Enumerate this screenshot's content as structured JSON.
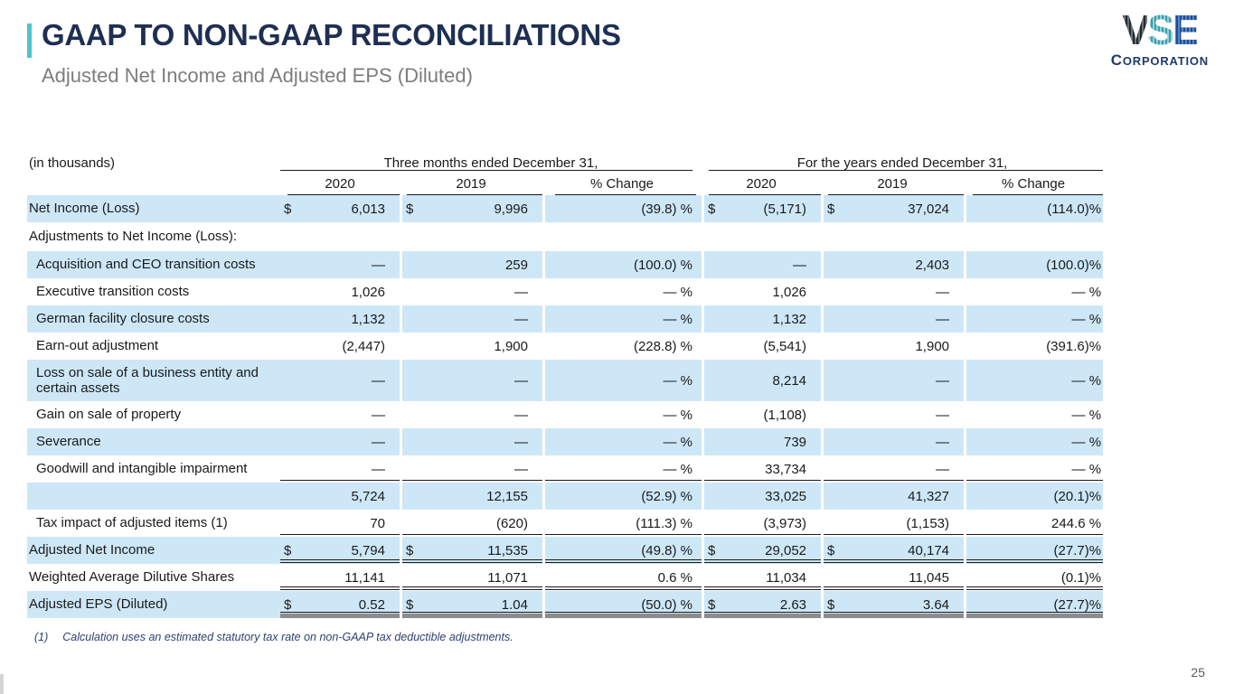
{
  "slide": {
    "title": "GAAP TO NON-GAAP RECONCILIATIONS",
    "subtitle": "Adjusted Net Income and Adjusted EPS (Diluted)",
    "page_number": "25",
    "colors": {
      "accent_teal": "#4fc3cf",
      "title_navy": "#1e2f53",
      "row_stripe_blue": "#cde7f7",
      "subtitle_gray": "#7d7d7d",
      "footnote_navy": "#2f3f6e",
      "final_rule_gray": "#8c8c8c"
    }
  },
  "logo": {
    "letter_v": "V",
    "letter_s": "S",
    "letter_e": "E",
    "sub_initial": "C",
    "sub_rest": "ORPORATION"
  },
  "table": {
    "units_label": "(in thousands)",
    "group_headers": [
      "Three months ended December 31,",
      "For the years ended December 31,"
    ],
    "col_headers": [
      "2020",
      "2019",
      "% Change",
      "2020",
      "2019",
      "% Change"
    ],
    "rows": [
      {
        "label": "Net Income (Loss)",
        "d1": "$",
        "v1": "6,013",
        "d2": "$",
        "v2": "9,996",
        "p1": "(39.8) %",
        "d3": "$",
        "v3": "(5,171)",
        "d4": "$",
        "v4": "37,024",
        "p2": "(114.0)%",
        "shade": true
      },
      {
        "label": "Adjustments to Net Income (Loss):",
        "section": true
      },
      {
        "label": "Acquisition and CEO transition costs",
        "indent": true,
        "v1": "—",
        "v2": "259",
        "p1": "(100.0) %",
        "v3": "—",
        "v4": "2,403",
        "p2": "(100.0)%",
        "shade": true
      },
      {
        "label": "Executive transition costs",
        "indent": true,
        "v1": "1,026",
        "v2": "—",
        "p1": "— %",
        "v3": "1,026",
        "v4": "—",
        "p2": "— %"
      },
      {
        "label": "German facility closure costs",
        "indent": true,
        "v1": "1,132",
        "v2": "—",
        "p1": "— %",
        "v3": "1,132",
        "v4": "—",
        "p2": "— %",
        "shade": true
      },
      {
        "label": "Earn-out adjustment",
        "indent": true,
        "v1": "(2,447)",
        "v2": "1,900",
        "p1": "(228.8) %",
        "v3": "(5,541)",
        "v4": "1,900",
        "p2": "(391.6)%"
      },
      {
        "label": "Loss on sale of a business entity and certain assets",
        "indent": true,
        "twoline": true,
        "v1": "—",
        "v2": "—",
        "p1": "— %",
        "v3": "8,214",
        "v4": "—",
        "p2": "— %",
        "shade": true
      },
      {
        "label": "Gain on sale of property",
        "indent": true,
        "v1": "—",
        "v2": "—",
        "p1": "— %",
        "v3": "(1,108)",
        "v4": "—",
        "p2": "— %"
      },
      {
        "label": "Severance",
        "indent": true,
        "v1": "—",
        "v2": "—",
        "p1": "— %",
        "v3": "739",
        "v4": "—",
        "p2": "— %",
        "shade": true
      },
      {
        "label": "Goodwill and intangible impairment",
        "indent": true,
        "v1": "—",
        "v2": "—",
        "p1": "— %",
        "v3": "33,734",
        "v4": "—",
        "p2": "— %",
        "style": "u"
      },
      {
        "label": "",
        "v1": "5,724",
        "v2": "12,155",
        "p1": "(52.9) %",
        "v3": "33,025",
        "v4": "41,327",
        "p2": "(20.1)%",
        "shade": true
      },
      {
        "label": "Tax impact of adjusted items (1)",
        "indent": true,
        "v1": "70",
        "v2": "(620)",
        "p1": "(111.3) %",
        "v3": "(3,973)",
        "v4": "(1,153)",
        "p2": "244.6 %",
        "style": "u"
      },
      {
        "label": "Adjusted Net Income",
        "d1": "$",
        "v1": "5,794",
        "d2": "$",
        "v2": "11,535",
        "p1": "(49.8) %",
        "d3": "$",
        "v3": "29,052",
        "d4": "$",
        "v4": "40,174",
        "p2": "(27.7)%",
        "shade": true,
        "style": "uu"
      },
      {
        "label": "Weighted Average Dilutive Shares",
        "v1": "11,141",
        "v2": "11,071",
        "p1": "0.6  %",
        "v3": "11,034",
        "v4": "11,045",
        "p2": "(0.1)%",
        "style": "uu"
      },
      {
        "label": "Adjusted EPS (Diluted)",
        "d1": "$",
        "v1": "0.52",
        "d2": "$",
        "v2": "1.04",
        "p1": "(50.0) %",
        "d3": "$",
        "v3": "2.63",
        "d4": "$",
        "v4": "3.64",
        "p2": "(27.7)%",
        "shade": true,
        "style": "final"
      }
    ]
  },
  "footnote": {
    "marker": "(1)",
    "text": "Calculation uses an estimated statutory tax rate on non-GAAP tax deductible adjustments."
  }
}
